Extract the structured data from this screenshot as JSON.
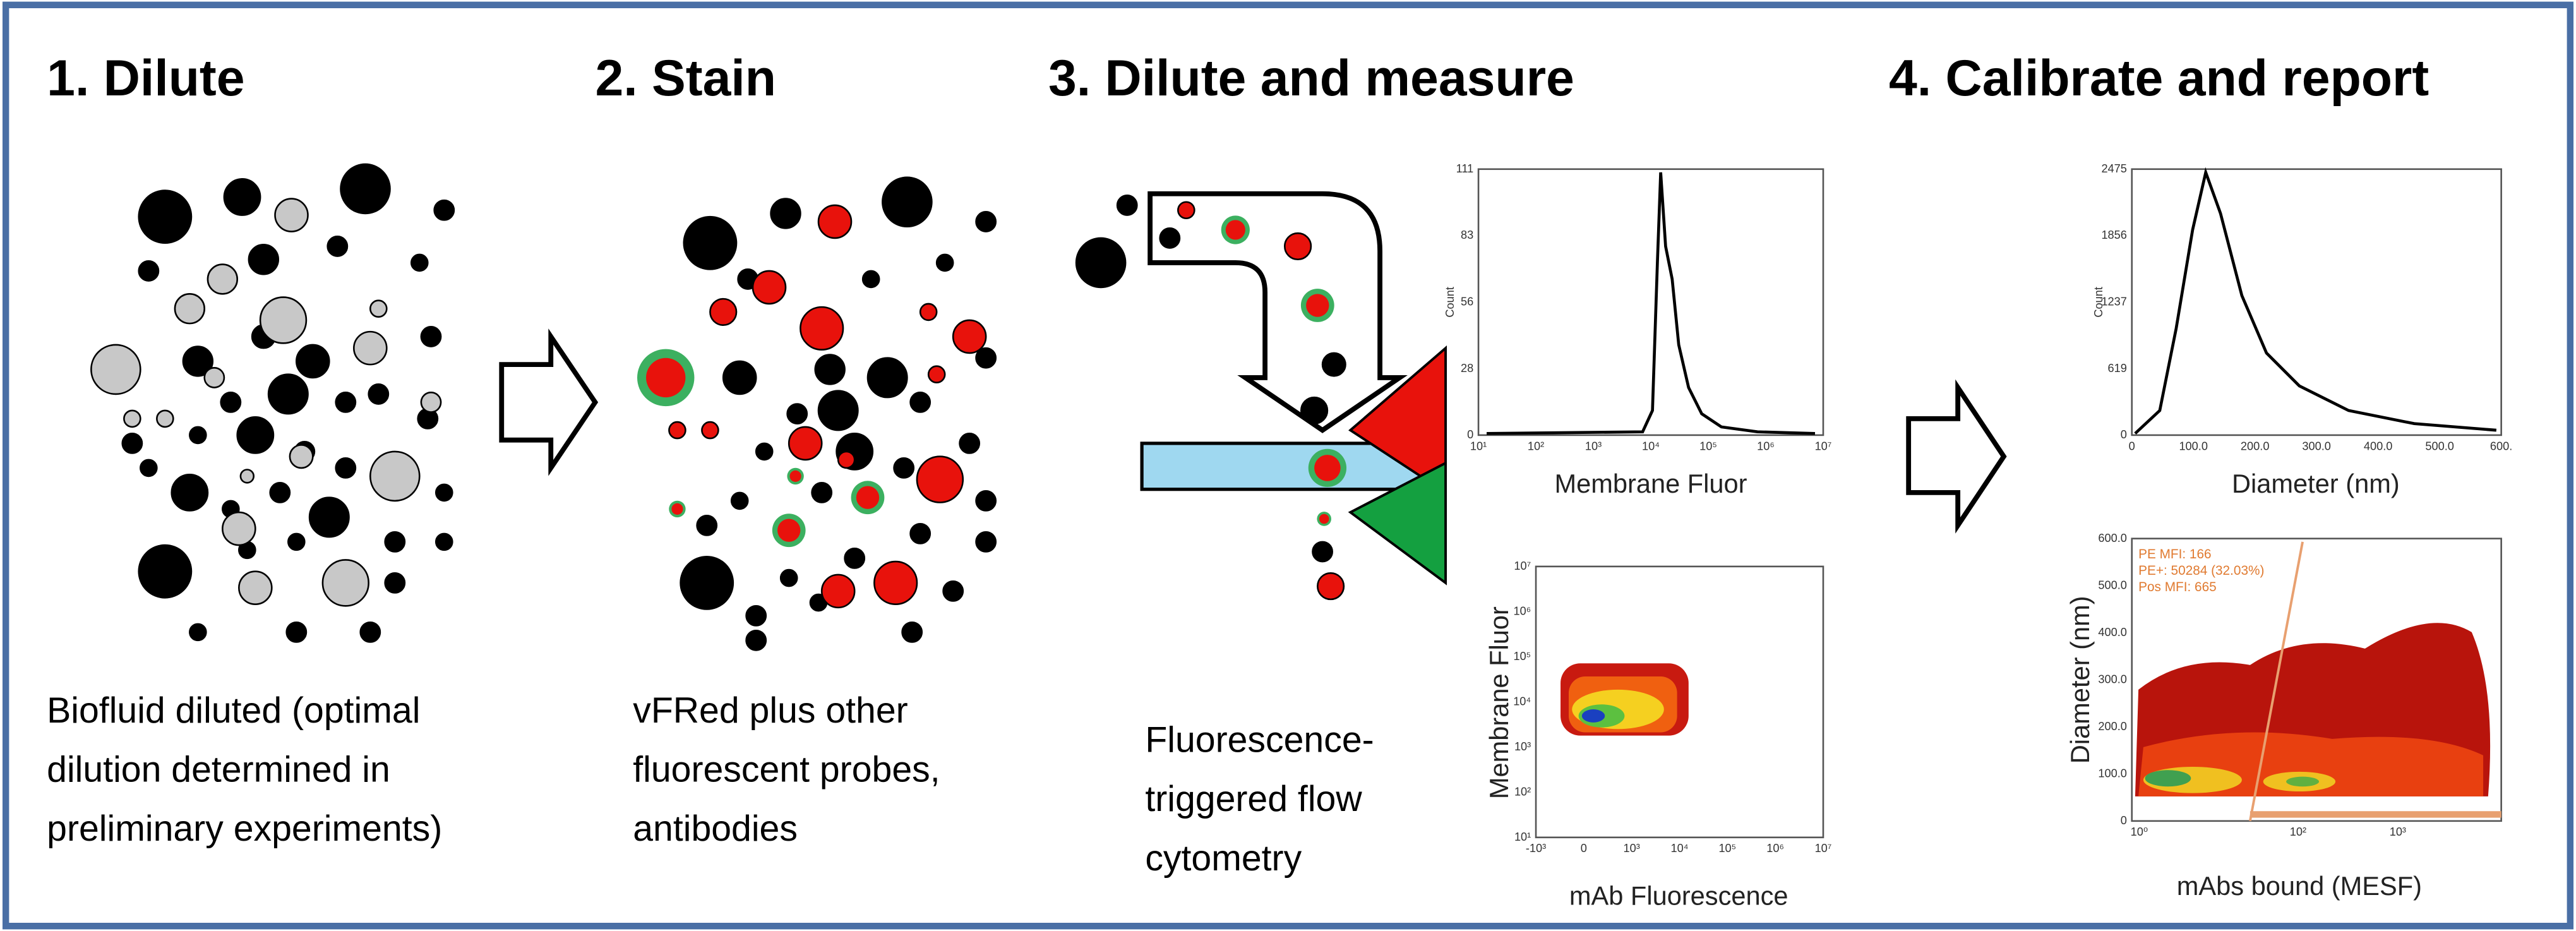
{
  "steps": [
    {
      "title": "1. Dilute",
      "caption": [
        "Biofluid diluted (optimal",
        "dilution determined in",
        "preliminary experiments)"
      ]
    },
    {
      "title": "2. Stain",
      "caption": [
        "vFRed plus other",
        "fluorescent probes,",
        "antibodies"
      ]
    },
    {
      "title": "3. Dilute and measure",
      "caption": [
        "Fluorescence-",
        "triggered flow",
        "cytometry"
      ]
    },
    {
      "title": "4. Calibrate and report",
      "caption": []
    }
  ],
  "plots": {
    "membrane_histogram": {
      "y_label": "Count",
      "x_label": "Membrane Fluor",
      "yticks": [
        "0",
        "28",
        "56",
        "83",
        "111"
      ],
      "xticks": [
        "10¹",
        "10²",
        "10³",
        "10⁴",
        "10⁵",
        "10⁶",
        "10⁷"
      ]
    },
    "density_plot": {
      "y_label": "Membrane Fluor",
      "x_label": "mAb Fluorescence",
      "yticks": [
        "10¹",
        "10²",
        "10³",
        "10⁴",
        "10⁵",
        "10⁶",
        "10⁷"
      ],
      "xticks": [
        "-10³",
        "0",
        "10³",
        "10⁴",
        "10⁵",
        "10⁶",
        "10⁷"
      ]
    },
    "diameter_histogram": {
      "y_label": "Count",
      "x_label": "Diameter (nm)",
      "yticks": [
        "0",
        "619",
        "1237",
        "1856",
        "2475"
      ],
      "xticks": [
        "0",
        "100.0",
        "200.0",
        "300.0",
        "400.0",
        "500.0",
        "600."
      ]
    },
    "diameter_scatter": {
      "y_label": "Diameter (nm)",
      "x_label": "mAbs bound (MESF)",
      "yticks": [
        "0",
        "100.0",
        "200.0",
        "300.0",
        "400.0",
        "500.0",
        "600.0"
      ],
      "xticks": [
        "10⁰",
        "10²",
        "10³"
      ],
      "gate_stats": [
        "PE MFI: 166",
        "PE+: 50284 (32.03%)",
        "Pos MFI: 665"
      ]
    }
  }
}
